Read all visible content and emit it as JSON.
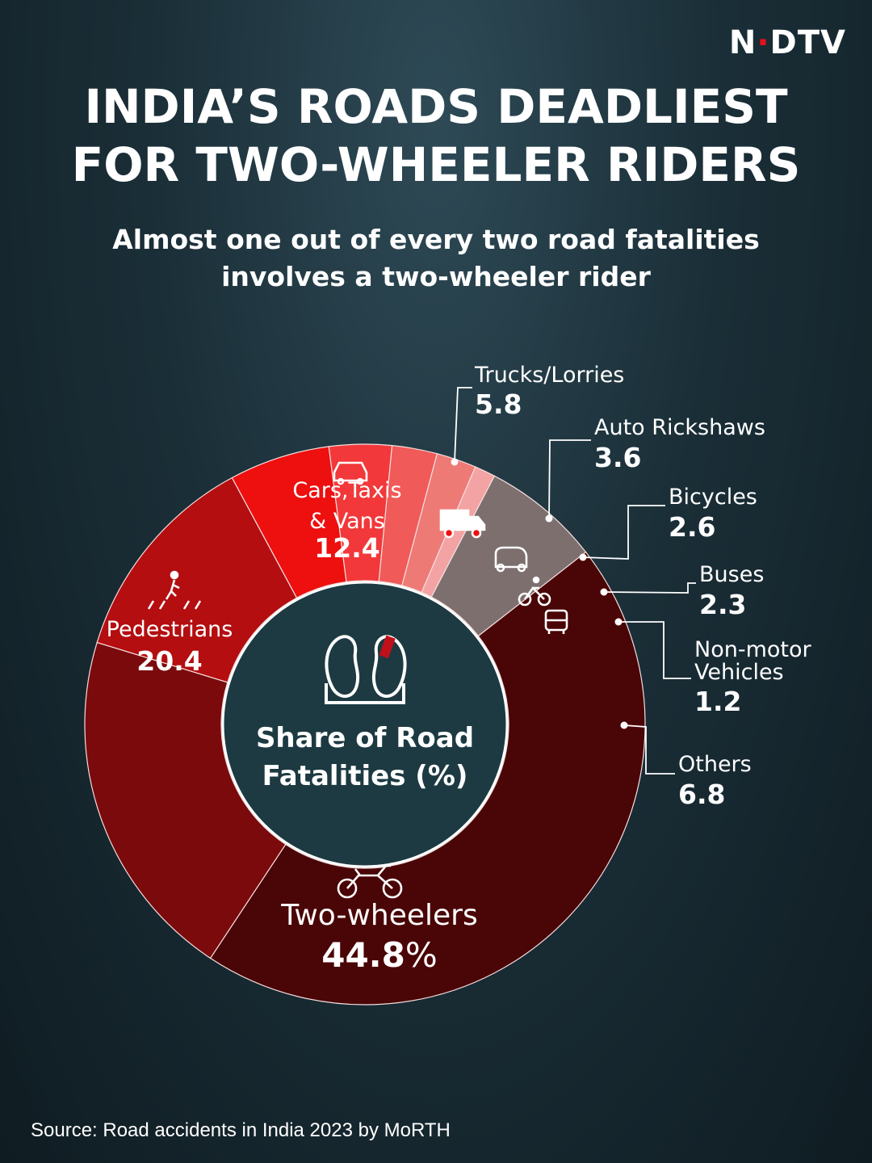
{
  "brand": {
    "logo_text": "NDTV",
    "logo_accent_color": "#e8101a"
  },
  "header": {
    "title_line1": "INDIA’S ROADS DEADLIEST",
    "title_line2": "FOR TWO-WHEELER RIDERS",
    "subtitle_line1": "Almost one out of every two road fatalities",
    "subtitle_line2": "involves a two-wheeler rider"
  },
  "footer": {
    "source": "Source: Road accidents in India 2023 by MoRTH"
  },
  "chart_data": {
    "type": "pie",
    "center_label_line1": "Share of Road",
    "center_label_line2": "Fatalities (%)",
    "unit_suffix": "%",
    "slices": [
      {
        "name": "Cars,Taxis & Vans",
        "label_lines": [
          "Cars,Taxis",
          "& Vans"
        ],
        "value": 12.4,
        "value_text": "12.4",
        "color": "#b40e10",
        "icon": "car-icon"
      },
      {
        "name": "Trucks/Lorries",
        "label_lines": [
          "Trucks/Lorries"
        ],
        "value": 5.8,
        "value_text": "5.8",
        "color": "#ee0f0f",
        "icon": "truck-icon"
      },
      {
        "name": "Auto Rickshaws",
        "label_lines": [
          "Auto Rickshaws"
        ],
        "value": 3.6,
        "value_text": "3.6",
        "color": "#f2383a",
        "icon": "auto-rickshaw-icon"
      },
      {
        "name": "Bicycles",
        "label_lines": [
          "Bicycles"
        ],
        "value": 2.6,
        "value_text": "2.6",
        "color": "#f05a58",
        "icon": "bicycle-icon"
      },
      {
        "name": "Buses",
        "label_lines": [
          "Buses"
        ],
        "value": 2.3,
        "value_text": "2.3",
        "color": "#ee7a76",
        "icon": "bus-icon"
      },
      {
        "name": "Non-motor Vehicles",
        "label_lines": [
          "Non-motor",
          "Vehicles"
        ],
        "value": 1.2,
        "value_text": "1.2",
        "color": "#f3a3a3",
        "icon": ""
      },
      {
        "name": "Others",
        "label_lines": [
          "Others"
        ],
        "value": 6.8,
        "value_text": "6.8",
        "color": "#7e6f6f",
        "icon": ""
      },
      {
        "name": "Two-wheelers",
        "label_lines": [
          "Two-wheelers"
        ],
        "value": 44.8,
        "value_text": "44.8",
        "color": "#4a0506",
        "icon": "motorcycle-icon"
      },
      {
        "name": "Pedestrians",
        "label_lines": [
          "Pedestrians"
        ],
        "value": 20.4,
        "value_text": "20.4",
        "color": "#7a0a0c",
        "icon": "pedestrian-icon"
      }
    ]
  }
}
